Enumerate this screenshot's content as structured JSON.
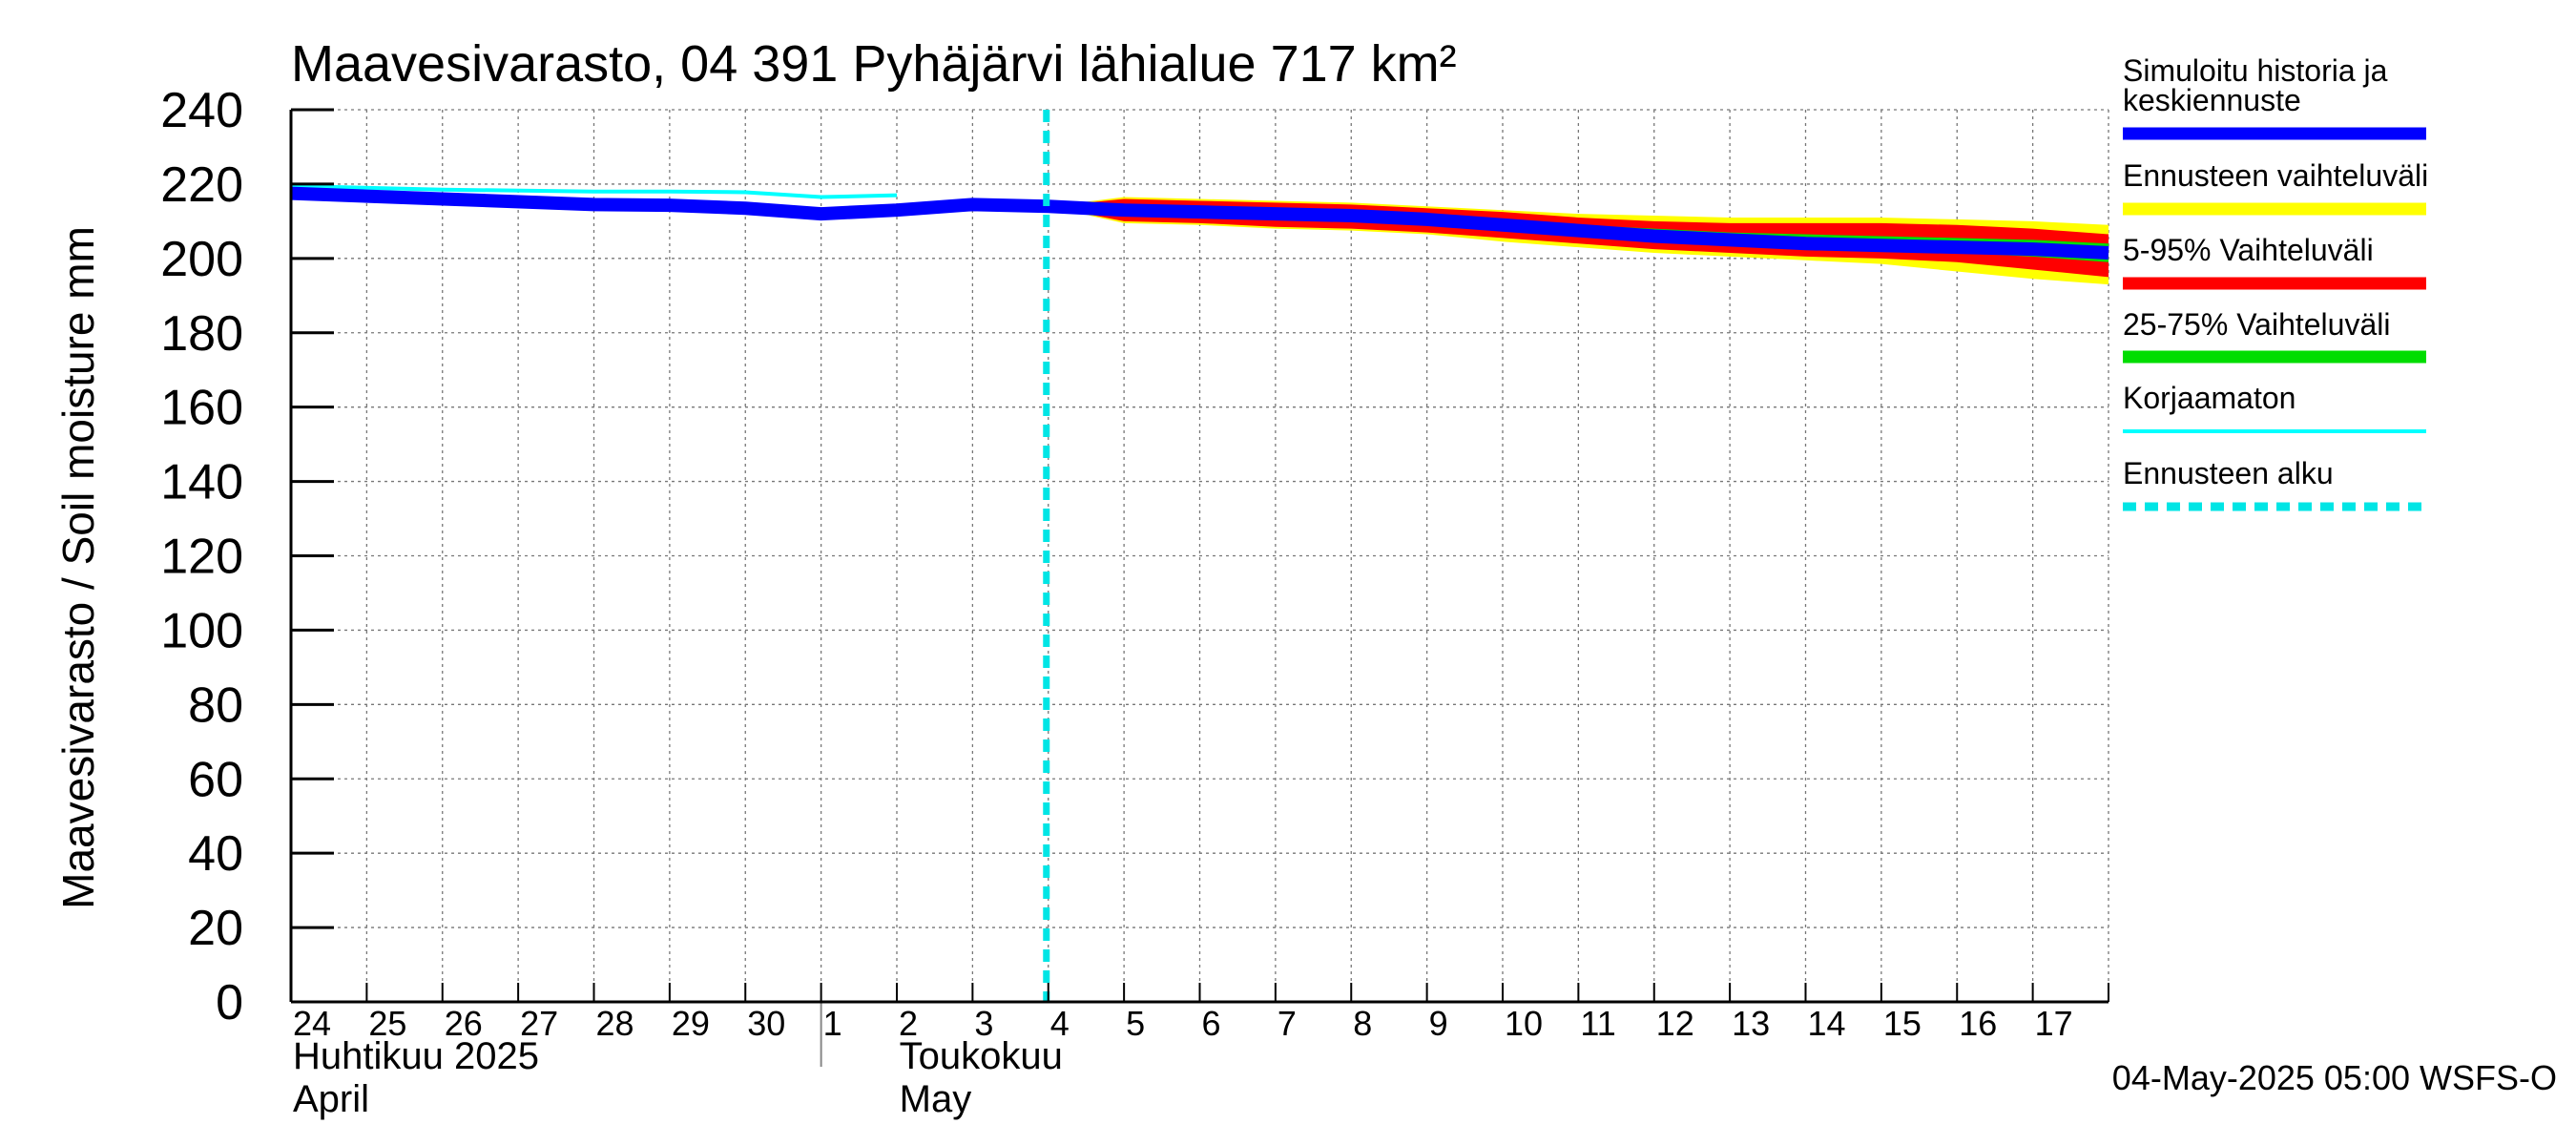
{
  "chart_data": {
    "type": "area",
    "title": "Maavesivarasto, 04 391 Pyhäjärvi lähialue 717 km²",
    "ylabel": "Maavesivarasto / Soil moisture   mm",
    "ylim": [
      0,
      240
    ],
    "yticks": [
      0,
      20,
      40,
      60,
      80,
      100,
      120,
      140,
      160,
      180,
      200,
      220,
      240
    ],
    "xlim": [
      "2025-04-24",
      "2025-05-18"
    ],
    "grid": true,
    "x_tick_labels": [
      "24",
      "25",
      "26",
      "27",
      "28",
      "29",
      "30",
      "1",
      "2",
      "3",
      "4",
      "5",
      "6",
      "7",
      "8",
      "9",
      "10",
      "11",
      "12",
      "13",
      "14",
      "15",
      "16",
      "17"
    ],
    "month_labels": [
      {
        "fi": "Huhtikuu  2025",
        "en": "April"
      },
      {
        "fi": "Toukokuu",
        "en": "May"
      }
    ],
    "forecast_start": "2025-05-04",
    "timestamp": "04-May-2025 05:00 WSFS-O",
    "legend_position": "right",
    "legend": [
      {
        "label": "Simuloitu historia ja keskiennuste",
        "color": "#0000ff",
        "style": "solid"
      },
      {
        "label": "Ennusteen vaihteluväli",
        "color": "#ffff00",
        "style": "band"
      },
      {
        "label": "5-95% Vaihteluväli",
        "color": "#ff0000",
        "style": "band"
      },
      {
        "label": "25-75% Vaihteluväli",
        "color": "#00dd00",
        "style": "band"
      },
      {
        "label": "Korjaamaton",
        "color": "#00ffff",
        "style": "thin"
      },
      {
        "label": "Ennusteen alku",
        "color": "#00e5e5",
        "style": "dashed"
      }
    ],
    "colors": {
      "history": "#0000ff",
      "range_full": "#ffff00",
      "range_5_95": "#ff0000",
      "range_25_75": "#00dd00",
      "uncorrected": "#00ffff",
      "forecast_start": "#00e5e5"
    },
    "series": [
      {
        "name": "Simuloitu historia ja keskiennuste",
        "x": [
          "2025-04-24",
          "2025-04-26",
          "2025-04-28",
          "2025-04-29",
          "2025-04-30",
          "2025-05-01",
          "2025-05-02",
          "2025-05-03",
          "2025-05-04",
          "2025-05-05",
          "2025-05-06",
          "2025-05-07",
          "2025-05-08",
          "2025-05-09",
          "2025-05-10",
          "2025-05-11",
          "2025-05-12",
          "2025-05-13",
          "2025-05-14",
          "2025-05-15",
          "2025-05-16",
          "2025-05-17",
          "2025-05-18"
        ],
        "y": [
          217.5,
          216,
          214.5,
          214.3,
          213.5,
          212,
          213,
          214.5,
          214,
          213,
          212.5,
          212,
          211.5,
          210.5,
          209,
          207.5,
          206,
          205,
          204,
          203.5,
          203,
          202.5,
          201.5
        ]
      },
      {
        "name": "Korjaamaton",
        "x": [
          "2025-04-24",
          "2025-04-26",
          "2025-04-28",
          "2025-04-29",
          "2025-04-30",
          "2025-05-01",
          "2025-05-02"
        ],
        "y": [
          219.5,
          218.5,
          218,
          218,
          217.8,
          216.5,
          217
        ]
      }
    ],
    "bands": [
      {
        "name": "Ennusteen vaihteluväli",
        "x": [
          "2025-05-04",
          "2025-05-05",
          "2025-05-06",
          "2025-05-07",
          "2025-05-08",
          "2025-05-09",
          "2025-05-10",
          "2025-05-11",
          "2025-05-12",
          "2025-05-13",
          "2025-05-14",
          "2025-05-15",
          "2025-05-16",
          "2025-05-17",
          "2025-05-18"
        ],
        "low": [
          214,
          209.5,
          209,
          208,
          207.5,
          206.5,
          204.5,
          203,
          201.5,
          200.5,
          199.5,
          198.5,
          196.5,
          194.5,
          193
        ],
        "high": [
          214,
          216.5,
          216,
          215.5,
          215,
          214,
          213,
          212,
          211.5,
          211,
          211,
          211,
          210.5,
          210,
          209
        ]
      },
      {
        "name": "5-95% Vaihteluväli",
        "x": [
          "2025-05-04",
          "2025-05-05",
          "2025-05-06",
          "2025-05-07",
          "2025-05-08",
          "2025-05-09",
          "2025-05-10",
          "2025-05-11",
          "2025-05-12",
          "2025-05-13",
          "2025-05-14",
          "2025-05-15",
          "2025-05-16",
          "2025-05-17",
          "2025-05-18"
        ],
        "low": [
          214,
          210,
          209.5,
          208.5,
          208,
          207,
          205.5,
          204,
          202.5,
          201.5,
          200.5,
          200,
          199,
          197,
          195
        ],
        "high": [
          214,
          216,
          215.5,
          215,
          214.5,
          213.5,
          212.5,
          211,
          210,
          209.5,
          209.5,
          209.5,
          209,
          208,
          206.5
        ]
      },
      {
        "name": "25-75% Vaihteluväli",
        "x": [
          "2025-05-04",
          "2025-05-05",
          "2025-05-06",
          "2025-05-07",
          "2025-05-08",
          "2025-05-09",
          "2025-05-10",
          "2025-05-11",
          "2025-05-12",
          "2025-05-13",
          "2025-05-14",
          "2025-05-15",
          "2025-05-16",
          "2025-05-17",
          "2025-05-18"
        ],
        "low": [
          214,
          212,
          211.5,
          211,
          210.5,
          209.5,
          208,
          206.5,
          205,
          204,
          203,
          202.5,
          201.5,
          200.5,
          199
        ],
        "high": [
          214,
          214.5,
          214,
          213.5,
          213,
          212,
          210.5,
          209,
          208,
          207,
          206.5,
          206,
          205.5,
          205,
          204
        ]
      }
    ]
  }
}
